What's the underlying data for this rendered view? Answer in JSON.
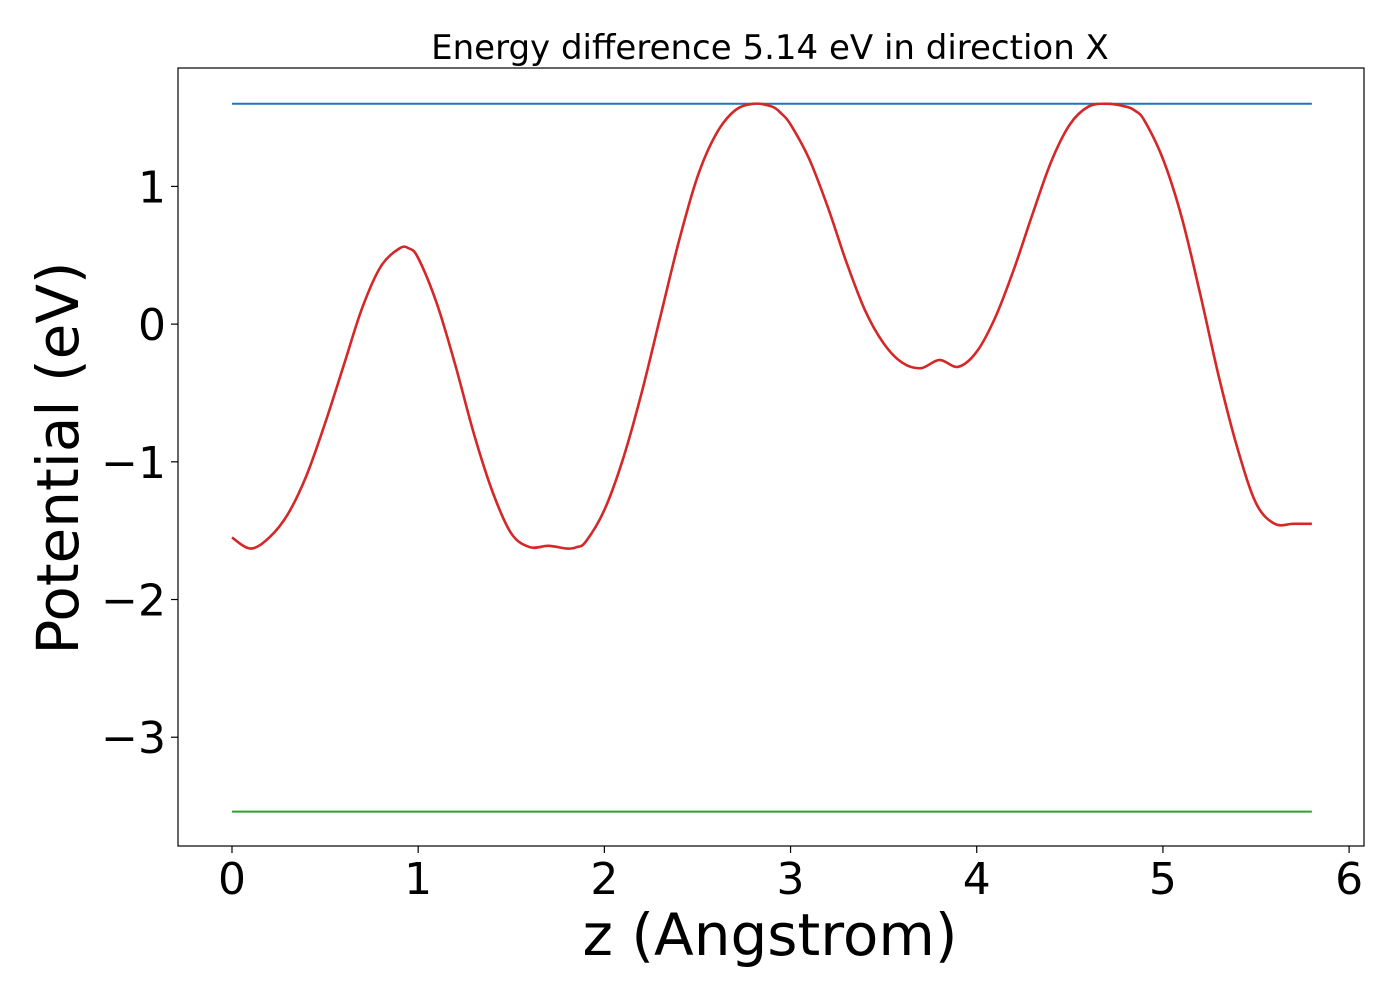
{
  "chart_data": {
    "type": "line",
    "title": "Energy difference 5.14 eV in direction X",
    "xlabel": "z (Angstrom)",
    "ylabel": "Potential (eV)",
    "xlim": [
      -0.29,
      6.08
    ],
    "ylim": [
      -3.79,
      1.86
    ],
    "xticks": [
      0,
      1,
      2,
      3,
      4,
      5,
      6
    ],
    "yticks": [
      -3,
      -2,
      -1,
      0,
      1
    ],
    "xtick_labels": [
      "0",
      "1",
      "2",
      "3",
      "4",
      "5",
      "6"
    ],
    "ytick_labels": [
      "−3",
      "−2",
      "−1",
      "0",
      "1"
    ],
    "grid": false,
    "legend": "none",
    "series": [
      {
        "color": "#1f77b4",
        "style": "hline",
        "x": [
          0,
          5.8
        ],
        "y": [
          1.6,
          1.6
        ]
      },
      {
        "color": "#2ca02c",
        "style": "hline",
        "x": [
          0,
          5.8
        ],
        "y": [
          -3.54,
          -3.54
        ]
      },
      {
        "color": "#d62728",
        "style": "curve",
        "x": [
          0,
          0.1,
          0.2,
          0.3,
          0.4,
          0.5,
          0.6,
          0.7,
          0.8,
          0.9,
          0.95,
          1.0,
          1.1,
          1.2,
          1.3,
          1.4,
          1.5,
          1.6,
          1.7,
          1.8,
          1.85,
          1.9,
          2.0,
          2.1,
          2.2,
          2.3,
          2.4,
          2.5,
          2.6,
          2.7,
          2.8,
          2.9,
          2.95,
          3.0,
          3.1,
          3.2,
          3.3,
          3.4,
          3.5,
          3.6,
          3.7,
          3.8,
          3.9,
          4.0,
          4.1,
          4.2,
          4.3,
          4.4,
          4.5,
          4.6,
          4.7,
          4.8,
          4.85,
          4.9,
          5.0,
          5.1,
          5.2,
          5.3,
          5.4,
          5.5,
          5.6,
          5.7,
          5.8
        ],
        "y": [
          -1.55,
          -1.63,
          -1.55,
          -1.38,
          -1.1,
          -0.72,
          -0.3,
          0.12,
          0.42,
          0.55,
          0.55,
          0.48,
          0.15,
          -0.3,
          -0.8,
          -1.22,
          -1.52,
          -1.62,
          -1.61,
          -1.63,
          -1.62,
          -1.58,
          -1.35,
          -0.98,
          -0.5,
          0.05,
          0.6,
          1.07,
          1.38,
          1.55,
          1.6,
          1.58,
          1.53,
          1.45,
          1.2,
          0.85,
          0.45,
          0.1,
          -0.14,
          -0.28,
          -0.32,
          -0.26,
          -0.31,
          -0.2,
          0.05,
          0.4,
          0.8,
          1.18,
          1.45,
          1.58,
          1.6,
          1.58,
          1.55,
          1.48,
          1.2,
          0.78,
          0.22,
          -0.38,
          -0.9,
          -1.3,
          -1.45,
          -1.45,
          -1.45
        ]
      }
    ]
  }
}
